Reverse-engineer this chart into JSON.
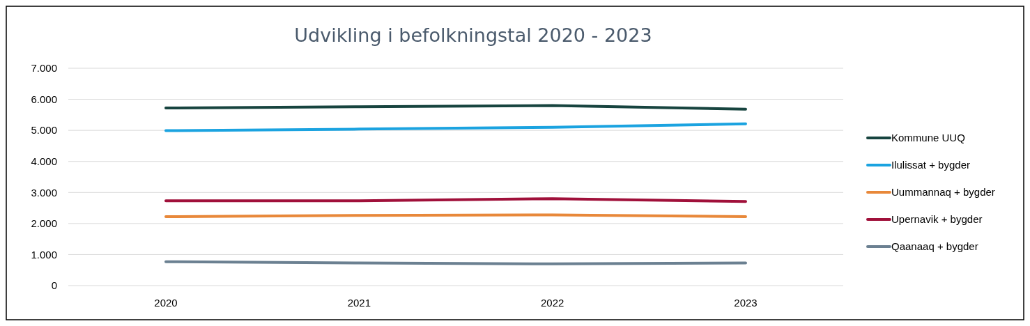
{
  "chart_data": {
    "type": "line",
    "title": "Udvikling i befolkningstal 2020 - 2023",
    "categories": [
      "2020",
      "2021",
      "2022",
      "2023"
    ],
    "series": [
      {
        "name": "Kommune UUQ",
        "color": "#17443f",
        "values": [
          5720,
          5760,
          5800,
          5680
        ]
      },
      {
        "name": "Ilulissat + bygder",
        "color": "#1ba3e0",
        "values": [
          4990,
          5040,
          5100,
          5210
        ]
      },
      {
        "name": "Uummannaq + bygder",
        "color": "#e8883a",
        "values": [
          2220,
          2260,
          2280,
          2220
        ]
      },
      {
        "name": "Upernavik + bygder",
        "color": "#a0103a",
        "values": [
          2730,
          2730,
          2800,
          2710
        ]
      },
      {
        "name": "Qaanaaq + bygder",
        "color": "#6b8091",
        "values": [
          770,
          730,
          700,
          730
        ]
      }
    ],
    "ylim": [
      0,
      7000
    ],
    "yticks": [
      0,
      {
        "value": 1000,
        "label": "1.000"
      },
      {
        "value": 2000,
        "label": "2.000"
      },
      {
        "value": 3000,
        "label": "3.000"
      },
      {
        "value": 4000,
        "label": "4.000"
      },
      {
        "value": 5000,
        "label": "5.000"
      },
      {
        "value": 6000,
        "label": "6.000"
      },
      {
        "value": 7000,
        "label": "7.000"
      }
    ],
    "grid": "y",
    "legend": "right",
    "marker": "none",
    "line_style": "solid"
  }
}
